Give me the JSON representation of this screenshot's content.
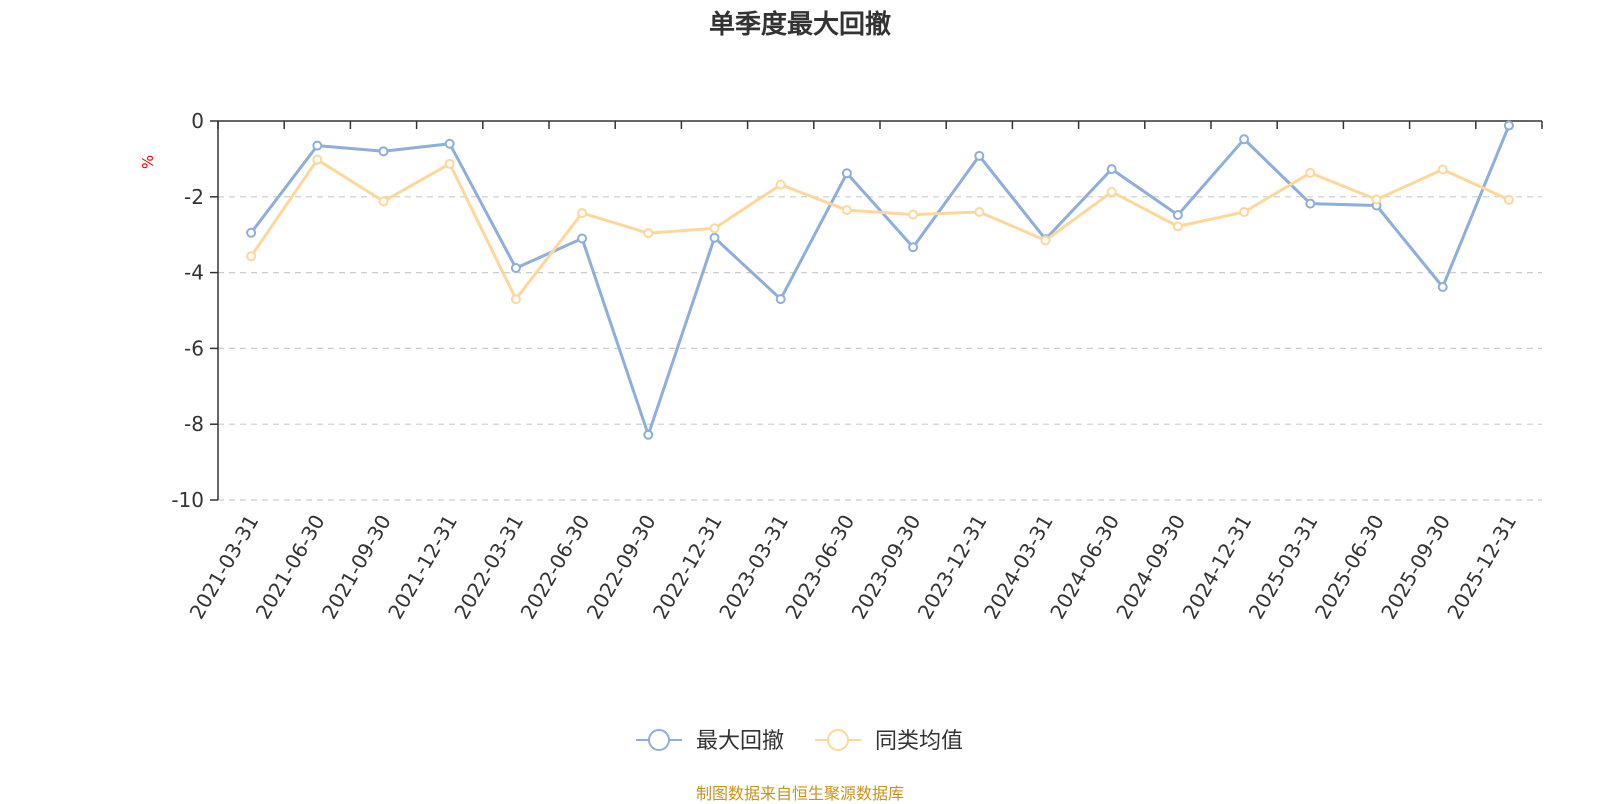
{
  "chart_data": {
    "type": "line",
    "title": "单季度最大回撤",
    "ylabel": "%",
    "ylim": [
      -10,
      0
    ],
    "yticks": [
      0,
      -2,
      -4,
      -6,
      -8,
      -10
    ],
    "grid": true,
    "legend_position": "bottom-center",
    "categories": [
      "2021-03-31",
      "2021-06-30",
      "2021-09-30",
      "2021-12-31",
      "2022-03-31",
      "2022-06-30",
      "2022-09-30",
      "2022-12-31",
      "2023-03-31",
      "2023-06-30",
      "2023-09-30",
      "2023-12-31",
      "2024-03-31",
      "2024-06-30",
      "2024-09-30",
      "2024-12-31",
      "2025-03-31",
      "2025-06-30",
      "2025-09-30",
      "2025-12-31"
    ],
    "series": [
      {
        "name": "最大回撤",
        "color": "#8eaedb",
        "values": [
          -2.95,
          -0.65,
          -0.8,
          -0.6,
          -3.88,
          -3.1,
          -8.28,
          -3.08,
          -4.7,
          -1.38,
          -3.33,
          -0.92,
          -3.12,
          -1.27,
          -2.48,
          -0.48,
          -2.18,
          -2.23,
          -4.38,
          -0.12
        ]
      },
      {
        "name": "同类均值",
        "color": "#fdd89a",
        "values": [
          -3.57,
          -1.02,
          -2.12,
          -1.13,
          -4.7,
          -2.43,
          -2.96,
          -2.83,
          -1.68,
          -2.35,
          -2.47,
          -2.4,
          -3.15,
          -1.87,
          -2.78,
          -2.4,
          -1.37,
          -2.07,
          -1.28,
          -2.08
        ]
      }
    ]
  },
  "source_text": "制图数据来自恒生聚源数据库"
}
